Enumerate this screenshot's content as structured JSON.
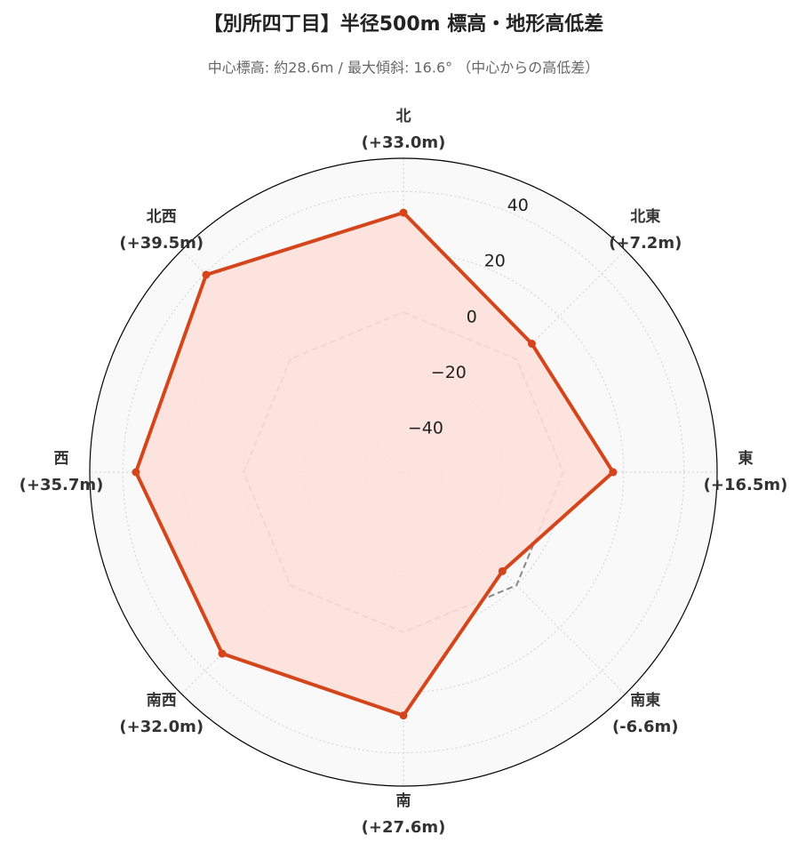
{
  "chart_data": {
    "type": "radar",
    "title": "【別所四丁目】半径500m 標高・地形高低差",
    "subtitle": "中心標高: 約28.6m / 最大傾斜: 16.6° （中心からの高低差）",
    "categories": [
      "北",
      "北東",
      "東",
      "南東",
      "南",
      "南西",
      "西",
      "北西"
    ],
    "values": [
      33.0,
      7.2,
      16.5,
      -6.6,
      27.6,
      32.0,
      35.7,
      39.5
    ],
    "value_labels": [
      "(+33.0m)",
      "(+7.2m)",
      "(+16.5m)",
      "(-6.6m)",
      "(+27.6m)",
      "(+32.0m)",
      "(+35.7m)",
      "(+39.5m)"
    ],
    "color": "#d5451b",
    "fill": "#fde0d9",
    "baseline": 0,
    "baseline_color": "#888888",
    "ylim": [
      -53,
      51
    ],
    "yticks": [
      {
        "value": -40,
        "label": "−40"
      },
      {
        "value": -20,
        "label": "−20"
      },
      0,
      20,
      40
    ],
    "grid": true
  }
}
